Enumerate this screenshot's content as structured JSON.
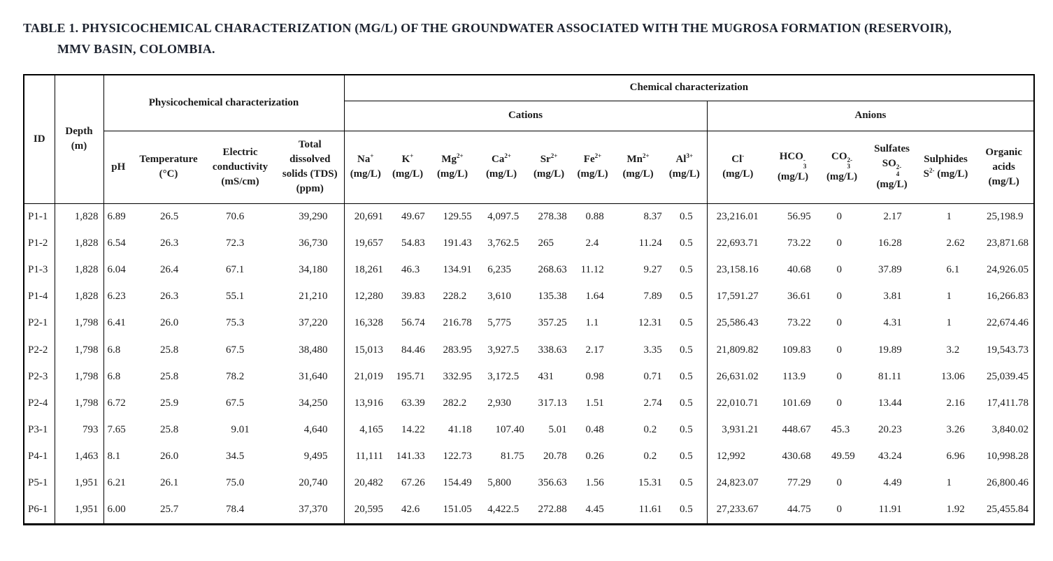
{
  "title": {
    "line1": "TABLE 1. PHYSICOCHEMICAL CHARACTERIZATION (MG/L) OF THE GROUNDWATER ASSOCIATED WITH THE MUGROSA FORMATION (RESERVOIR),",
    "line2": "MMV BASIN, COLOMBIA."
  },
  "table": {
    "id_header": "ID",
    "depth_header": [
      "Depth",
      "(m)"
    ],
    "group_physico": "Physicochemical characterization",
    "group_chemical": "Chemical characterization",
    "group_cations": "Cations",
    "group_anions": "Anions",
    "columns": [
      {
        "key": "depth",
        "header": [
          "Depth",
          "(m)"
        ]
      },
      {
        "key": "ph",
        "header": [
          "pH"
        ]
      },
      {
        "key": "temp",
        "header": [
          "Temperature",
          "(°C)"
        ]
      },
      {
        "key": "ec",
        "header": [
          "Electric",
          "conductivity",
          "(mS/cm)"
        ]
      },
      {
        "key": "tds",
        "header": [
          "Total",
          "dissolved",
          "solids (TDS)",
          "(ppm)"
        ]
      },
      {
        "key": "na",
        "header": [
          "Na^+^",
          "(mg/L)"
        ]
      },
      {
        "key": "k",
        "header": [
          "K^+^",
          "(mg/L)"
        ]
      },
      {
        "key": "mg",
        "header": [
          "Mg^2+^",
          "(mg/L)"
        ]
      },
      {
        "key": "ca",
        "header": [
          "Ca^2+^",
          "(mg/L)"
        ]
      },
      {
        "key": "sr",
        "header": [
          "Sr^2+^",
          "(mg/L)"
        ]
      },
      {
        "key": "fe",
        "header": [
          "Fe^2+^",
          "(mg/L)"
        ]
      },
      {
        "key": "mn",
        "header": [
          "Mn^2+^",
          "(mg/L)"
        ]
      },
      {
        "key": "al",
        "header": [
          "Al^3+^",
          "(mg/L)"
        ]
      },
      {
        "key": "cl",
        "header": [
          "Cl^-^",
          "(mg/L)"
        ]
      },
      {
        "key": "hco3",
        "header": [
          "HCO{3|-}",
          "(mg/L)"
        ]
      },
      {
        "key": "co3",
        "header": [
          "CO{3|2-}",
          "(mg/L)"
        ]
      },
      {
        "key": "so4",
        "header": [
          "Sulfates",
          "SO{4|2-}",
          "(mg/L)"
        ]
      },
      {
        "key": "s",
        "header": [
          "Sulphides",
          "S^2-^ (mg/L)"
        ]
      },
      {
        "key": "oa",
        "header": [
          "Organic",
          "acids",
          "(mg/L)"
        ]
      }
    ],
    "rows": [
      {
        "id": "P1-1",
        "values": [
          "1,828",
          "6.89",
          "26.5",
          "70.6",
          "39,290",
          "20,691",
          "49.67",
          "129.55",
          "4,097.5",
          "278.38",
          "0.88",
          "8.37",
          "0.5",
          "23,216.01",
          "56.95",
          "0",
          "2.17",
          "1",
          "25,198.9"
        ]
      },
      {
        "id": "P1-2",
        "values": [
          "1,828",
          "6.54",
          "26.3",
          "72.3",
          "36,730",
          "19,657",
          "54.83",
          "191.43",
          "3,762.5",
          "265",
          "2.4",
          "11.24",
          "0.5",
          "22,693.71",
          "73.22",
          "0",
          "16.28",
          "2.62",
          "23,871.68"
        ]
      },
      {
        "id": "P1-3",
        "values": [
          "1,828",
          "6.04",
          "26.4",
          "67.1",
          "34,180",
          "18,261",
          "46.3",
          "134.91",
          "6,235",
          "268.63",
          "11.12",
          "9.27",
          "0.5",
          "23,158.16",
          "40.68",
          "0",
          "37.89",
          "6.1",
          "24,926.05"
        ]
      },
      {
        "id": "P1-4",
        "values": [
          "1,828",
          "6.23",
          "26.3",
          "55.1",
          "21,210",
          "12,280",
          "39.83",
          "228.2",
          "3,610",
          "135.38",
          "1.64",
          "7.89",
          "0.5",
          "17,591.27",
          "36.61",
          "0",
          "3.81",
          "1",
          "16,266.83"
        ]
      },
      {
        "id": "P2-1",
        "values": [
          "1,798",
          "6.41",
          "26.0",
          "75.3",
          "37,220",
          "16,328",
          "56.74",
          "216.78",
          "5,775",
          "357.25",
          "1.1",
          "12.31",
          "0.5",
          "25,586.43",
          "73.22",
          "0",
          "4.31",
          "1",
          "22,674.46"
        ]
      },
      {
        "id": "P2-2",
        "values": [
          "1,798",
          "6.8",
          "25.8",
          "67.5",
          "38,480",
          "15,013",
          "84.46",
          "283.95",
          "3,927.5",
          "338.63",
          "2.17",
          "3.35",
          "0.5",
          "21,809.82",
          "109.83",
          "0",
          "19.89",
          "3.2",
          "19,543.73"
        ]
      },
      {
        "id": "P2-3",
        "values": [
          "1,798",
          "6.8",
          "25.8",
          "78.2",
          "31,640",
          "21,019",
          "195.71",
          "332.95",
          "3,172.5",
          "431",
          "0.98",
          "0.71",
          "0.5",
          "26,631.02",
          "113.9",
          "0",
          "81.11",
          "13.06",
          "25,039.45"
        ]
      },
      {
        "id": "P2-4",
        "values": [
          "1,798",
          "6.72",
          "25.9",
          "67.5",
          "34,250",
          "13,916",
          "63.39",
          "282.2",
          "2,930",
          "317.13",
          "1.51",
          "2.74",
          "0.5",
          "22,010.71",
          "101.69",
          "0",
          "13.44",
          "2.16",
          "17,411.78"
        ]
      },
      {
        "id": "P3-1",
        "values": [
          "793",
          "7.65",
          "25.8",
          "9.01",
          "4,640",
          "4,165",
          "14.22",
          "41.18",
          "107.40",
          "5.01",
          "0.48",
          "0.2",
          "0.5",
          "3,931.21",
          "448.67",
          "45.3",
          "20.23",
          "3.26",
          "3,840.02"
        ]
      },
      {
        "id": "P4-1",
        "values": [
          "1,463",
          "8.1",
          "26.0",
          "34.5",
          "9,495",
          "11,111",
          "141.33",
          "122.73",
          "81.75",
          "20.78",
          "0.26",
          "0.2",
          "0.5",
          "12,992",
          "430.68",
          "49.59",
          "43.24",
          "6.96",
          "10,998.28"
        ]
      },
      {
        "id": "P5-1",
        "values": [
          "1,951",
          "6.21",
          "26.1",
          "75.0",
          "20,740",
          "20,482",
          "67.26",
          "154.49",
          "5,800",
          "356.63",
          "1.56",
          "15.31",
          "0.5",
          "24,823.07",
          "77.29",
          "0",
          "4.49",
          "1",
          "26,800.46"
        ]
      },
      {
        "id": "P6-1",
        "values": [
          "1,951",
          "6.00",
          "25.7",
          "78.4",
          "37,370",
          "20,595",
          "42.6",
          "151.05",
          "4,422.5",
          "272.88",
          "4.45",
          "11.61",
          "0.5",
          "27,233.67",
          "44.75",
          "0",
          "11.91",
          "1.92",
          "25,455.84"
        ]
      }
    ]
  }
}
